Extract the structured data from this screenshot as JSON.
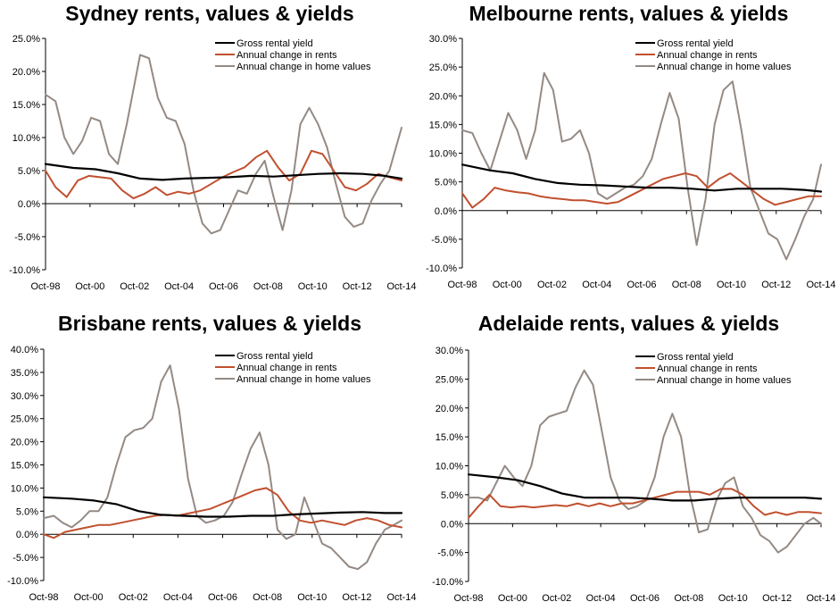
{
  "colors": {
    "yield": "#000000",
    "rents": "#c0502f",
    "values": "#948a84",
    "axis": "#000000"
  },
  "chart_data": [
    {
      "type": "line",
      "title": "Sydney rents, values & yields",
      "ylim": [
        -10,
        25
      ],
      "yticks": [
        "25.0%",
        "20.0%",
        "15.0%",
        "10.0%",
        "5.0%",
        "0.0%",
        "-5.0%",
        "-10.0%"
      ],
      "xticks": [
        "Oct-98",
        "Oct-00",
        "Oct-02",
        "Oct-04",
        "Oct-06",
        "Oct-08",
        "Oct-10",
        "Oct-12",
        "Oct-14"
      ],
      "xrange": [
        1998.75,
        2014.75
      ],
      "legend_position": "top-right",
      "series": [
        {
          "name": "Gross rental yield",
          "key": "yield",
          "x": [
            1998.75,
            2000,
            2001,
            2002,
            2003,
            2004,
            2005,
            2006,
            2007,
            2008,
            2009,
            2010,
            2011,
            2012,
            2013,
            2014,
            2014.75
          ],
          "y": [
            6.0,
            5.4,
            5.2,
            4.6,
            3.8,
            3.6,
            3.8,
            3.9,
            4.0,
            4.2,
            4.1,
            4.3,
            4.5,
            4.6,
            4.5,
            4.2,
            3.8
          ]
        },
        {
          "name": "Annual change in rents",
          "key": "rents",
          "x": [
            1998.75,
            1999.2,
            1999.7,
            2000.2,
            2000.7,
            2001.2,
            2001.7,
            2002.2,
            2002.7,
            2003.2,
            2003.7,
            2004.2,
            2004.7,
            2005.2,
            2005.7,
            2006.2,
            2006.7,
            2007.2,
            2007.7,
            2008.2,
            2008.7,
            2009.2,
            2009.7,
            2010.2,
            2010.7,
            2011.2,
            2011.7,
            2012.2,
            2012.7,
            2013.2,
            2013.7,
            2014.2,
            2014.75
          ],
          "y": [
            5.0,
            2.5,
            1.0,
            3.5,
            4.2,
            4.0,
            3.8,
            2.0,
            0.8,
            1.5,
            2.5,
            1.3,
            1.8,
            1.5,
            2.0,
            3.0,
            4.0,
            4.8,
            5.5,
            7.0,
            8.0,
            5.5,
            3.5,
            4.5,
            8.0,
            7.5,
            5.0,
            2.5,
            2.0,
            3.0,
            4.5,
            4.0,
            3.5
          ]
        },
        {
          "name": "Annual change in home values",
          "key": "values",
          "x": [
            1998.75,
            1999.2,
            1999.6,
            2000.0,
            2000.4,
            2000.8,
            2001.2,
            2001.6,
            2002.0,
            2002.4,
            2002.8,
            2003.0,
            2003.4,
            2003.8,
            2004.2,
            2004.6,
            2005.0,
            2005.4,
            2005.8,
            2006.2,
            2006.6,
            2007.0,
            2007.4,
            2007.8,
            2008.2,
            2008.6,
            2009.0,
            2009.4,
            2009.8,
            2010.2,
            2010.6,
            2011.0,
            2011.4,
            2011.8,
            2012.2,
            2012.6,
            2013.0,
            2013.4,
            2013.8,
            2014.2,
            2014.75
          ],
          "y": [
            16.5,
            15.5,
            10.0,
            7.5,
            9.5,
            13.0,
            12.5,
            7.5,
            6.0,
            12.0,
            19.0,
            22.5,
            22.0,
            16.0,
            13.0,
            12.5,
            9.0,
            2.0,
            -3.0,
            -4.5,
            -4.0,
            -1.0,
            2.0,
            1.5,
            4.5,
            6.5,
            1.0,
            -4.0,
            2.0,
            12.0,
            14.5,
            12.0,
            8.5,
            3.0,
            -2.0,
            -3.5,
            -3.0,
            0.5,
            3.0,
            5.0,
            11.5
          ]
        }
      ]
    },
    {
      "type": "line",
      "title": "Melbourne rents, values & yields",
      "ylim": [
        -10,
        30
      ],
      "yticks": [
        "30.0%",
        "25.0%",
        "20.0%",
        "15.0%",
        "10.0%",
        "5.0%",
        "0.0%",
        "-5.0%",
        "-10.0%"
      ],
      "xticks": [
        "Oct-98",
        "Oct-00",
        "Oct-02",
        "Oct-04",
        "Oct-06",
        "Oct-08",
        "Oct-10",
        "Oct-12",
        "Oct-14"
      ],
      "xrange": [
        1998.75,
        2014.75
      ],
      "legend_position": "top-right",
      "series": [
        {
          "name": "Gross rental yield",
          "key": "yield",
          "x": [
            1998.75,
            2000,
            2001,
            2002,
            2003,
            2004,
            2005,
            2006,
            2007,
            2008,
            2009,
            2010,
            2011,
            2012,
            2013,
            2014,
            2014.75
          ],
          "y": [
            8.0,
            7.0,
            6.5,
            5.5,
            4.8,
            4.5,
            4.4,
            4.2,
            4.0,
            4.0,
            3.8,
            3.5,
            3.8,
            3.8,
            3.8,
            3.6,
            3.3
          ]
        },
        {
          "name": "Annual change in rents",
          "key": "rents",
          "x": [
            1998.75,
            1999.2,
            1999.7,
            2000.2,
            2000.7,
            2001.2,
            2001.7,
            2002.2,
            2002.7,
            2003.2,
            2003.7,
            2004.2,
            2004.7,
            2005.2,
            2005.7,
            2006.2,
            2006.7,
            2007.2,
            2007.7,
            2008.2,
            2008.7,
            2009.2,
            2009.7,
            2010.2,
            2010.7,
            2011.2,
            2011.7,
            2012.2,
            2012.7,
            2013.2,
            2013.7,
            2014.2,
            2014.75
          ],
          "y": [
            3.0,
            0.5,
            2.0,
            4.0,
            3.5,
            3.2,
            3.0,
            2.5,
            2.2,
            2.0,
            1.8,
            1.8,
            1.5,
            1.2,
            1.5,
            2.5,
            3.5,
            4.5,
            5.5,
            6.0,
            6.5,
            6.0,
            4.0,
            5.5,
            6.5,
            5.0,
            3.5,
            2.0,
            1.0,
            1.5,
            2.0,
            2.5,
            2.5
          ]
        },
        {
          "name": "Annual change in home values",
          "key": "values",
          "x": [
            1998.75,
            1999.2,
            1999.6,
            2000.0,
            2000.4,
            2000.8,
            2001.2,
            2001.6,
            2002.0,
            2002.4,
            2002.8,
            2003.2,
            2003.6,
            2004.0,
            2004.4,
            2004.8,
            2005.2,
            2005.6,
            2006.0,
            2006.4,
            2006.8,
            2007.2,
            2007.6,
            2008.0,
            2008.4,
            2008.8,
            2009.2,
            2009.6,
            2010.0,
            2010.4,
            2010.8,
            2011.2,
            2011.6,
            2012.0,
            2012.4,
            2012.8,
            2013.2,
            2013.6,
            2014.0,
            2014.4,
            2014.75
          ],
          "y": [
            14.0,
            13.5,
            10.0,
            7.0,
            12.0,
            17.0,
            14.0,
            9.0,
            14.0,
            24.0,
            21.0,
            12.0,
            12.5,
            14.0,
            10.0,
            3.0,
            2.0,
            3.0,
            4.0,
            4.5,
            6.0,
            9.0,
            15.0,
            20.5,
            16.0,
            4.0,
            -6.0,
            2.0,
            15.0,
            21.0,
            22.5,
            14.0,
            4.0,
            0.0,
            -4.0,
            -5.0,
            -8.5,
            -5.0,
            -1.0,
            2.0,
            8.0
          ]
        }
      ]
    },
    {
      "type": "line",
      "title": "Brisbane rents, values & yields",
      "ylim": [
        -10,
        40
      ],
      "yticks": [
        "40.0%",
        "35.0%",
        "30.0%",
        "25.0%",
        "20.0%",
        "15.0%",
        "10.0%",
        "5.0%",
        "0.0%",
        "-5.0%",
        "-10.0%"
      ],
      "xticks": [
        "Oct-98",
        "Oct-00",
        "Oct-02",
        "Oct-04",
        "Oct-06",
        "Oct-08",
        "Oct-10",
        "Oct-12",
        "Oct-14"
      ],
      "xrange": [
        1998.75,
        2014.75
      ],
      "legend_position": "top-right",
      "series": [
        {
          "name": "Gross rental yield",
          "key": "yield",
          "x": [
            1998.75,
            2000,
            2001,
            2002,
            2003,
            2004,
            2005,
            2006,
            2007,
            2008,
            2009,
            2010,
            2011,
            2012,
            2013,
            2014,
            2014.75
          ],
          "y": [
            8.0,
            7.7,
            7.3,
            6.5,
            5.0,
            4.2,
            4.0,
            3.8,
            3.8,
            4.0,
            4.0,
            4.3,
            4.5,
            4.7,
            4.8,
            4.6,
            4.6
          ]
        },
        {
          "name": "Annual change in rents",
          "key": "rents",
          "x": [
            1998.75,
            1999.2,
            1999.7,
            2000.2,
            2000.7,
            2001.2,
            2001.7,
            2002.2,
            2002.7,
            2003.2,
            2003.7,
            2004.2,
            2004.7,
            2005.2,
            2005.7,
            2006.2,
            2006.7,
            2007.2,
            2007.7,
            2008.2,
            2008.7,
            2009.2,
            2009.7,
            2010.2,
            2010.7,
            2011.2,
            2011.7,
            2012.2,
            2012.7,
            2013.2,
            2013.7,
            2014.2,
            2014.75
          ],
          "y": [
            0.0,
            -0.8,
            0.5,
            1.0,
            1.5,
            2.0,
            2.0,
            2.5,
            3.0,
            3.5,
            4.0,
            4.2,
            4.0,
            4.5,
            5.0,
            5.5,
            6.5,
            7.5,
            8.5,
            9.5,
            10.0,
            8.5,
            5.0,
            3.0,
            2.5,
            3.0,
            2.5,
            2.0,
            3.0,
            3.5,
            3.0,
            2.0,
            1.5
          ]
        },
        {
          "name": "Annual change in home values",
          "key": "values",
          "x": [
            1998.75,
            1999.2,
            1999.6,
            2000.0,
            2000.4,
            2000.8,
            2001.2,
            2001.6,
            2002.0,
            2002.4,
            2002.8,
            2003.2,
            2003.6,
            2004.0,
            2004.4,
            2004.8,
            2005.2,
            2005.6,
            2006.0,
            2006.4,
            2006.8,
            2007.2,
            2007.6,
            2008.0,
            2008.4,
            2008.8,
            2009.2,
            2009.6,
            2010.0,
            2010.4,
            2010.8,
            2011.2,
            2011.6,
            2012.0,
            2012.4,
            2012.8,
            2013.2,
            2013.6,
            2014.0,
            2014.4,
            2014.75
          ],
          "y": [
            3.5,
            4.0,
            2.5,
            1.5,
            3.0,
            5.0,
            5.0,
            8.0,
            15.0,
            21.0,
            22.5,
            23.0,
            25.0,
            33.0,
            36.5,
            27.0,
            12.0,
            4.0,
            2.5,
            3.0,
            4.0,
            7.0,
            13.0,
            18.5,
            22.0,
            15.0,
            1.0,
            -1.0,
            0.0,
            8.0,
            3.0,
            -2.0,
            -3.0,
            -5.0,
            -7.0,
            -7.5,
            -6.0,
            -2.0,
            1.0,
            2.0,
            3.0
          ]
        }
      ]
    },
    {
      "type": "line",
      "title": "Adelaide rents, values & yields",
      "ylim": [
        -10,
        30
      ],
      "yticks": [
        "30.0%",
        "25.0%",
        "20.0%",
        "15.0%",
        "10.0%",
        "5.0%",
        "0.0%",
        "-5.0%",
        "-10.0%"
      ],
      "xticks": [
        "Oct-98",
        "Oct-00",
        "Oct-02",
        "Oct-04",
        "Oct-06",
        "Oct-08",
        "Oct-10",
        "Oct-12",
        "Oct-14"
      ],
      "xrange": [
        1998.75,
        2014.75
      ],
      "legend_position": "top-right",
      "series": [
        {
          "name": "Gross rental yield",
          "key": "yield",
          "x": [
            1998.75,
            2000,
            2001,
            2002,
            2003,
            2004,
            2005,
            2006,
            2007,
            2008,
            2009,
            2010,
            2011,
            2012,
            2013,
            2014,
            2014.75
          ],
          "y": [
            8.5,
            8.0,
            7.5,
            6.5,
            5.2,
            4.5,
            4.5,
            4.5,
            4.3,
            4.0,
            4.0,
            4.3,
            4.5,
            4.5,
            4.5,
            4.5,
            4.3
          ]
        },
        {
          "name": "Annual change in rents",
          "key": "rents",
          "x": [
            1998.75,
            1999.2,
            1999.7,
            2000.2,
            2000.7,
            2001.2,
            2001.7,
            2002.2,
            2002.7,
            2003.2,
            2003.7,
            2004.2,
            2004.7,
            2005.2,
            2005.7,
            2006.2,
            2006.7,
            2007.2,
            2007.7,
            2008.2,
            2008.7,
            2009.2,
            2009.7,
            2010.2,
            2010.7,
            2011.2,
            2011.7,
            2012.2,
            2012.7,
            2013.2,
            2013.7,
            2014.2,
            2014.75
          ],
          "y": [
            1.0,
            3.0,
            5.0,
            3.0,
            2.8,
            3.0,
            2.8,
            3.0,
            3.2,
            3.0,
            3.5,
            3.0,
            3.5,
            3.0,
            3.5,
            3.5,
            4.0,
            4.5,
            5.0,
            5.5,
            5.5,
            5.5,
            5.0,
            6.0,
            6.0,
            5.0,
            3.0,
            1.5,
            2.0,
            1.5,
            2.0,
            2.0,
            1.8
          ]
        },
        {
          "name": "Annual change in home values",
          "key": "values",
          "x": [
            1998.75,
            1999.2,
            1999.6,
            2000.0,
            2000.4,
            2000.8,
            2001.2,
            2001.6,
            2002.0,
            2002.4,
            2002.8,
            2003.2,
            2003.6,
            2004.0,
            2004.4,
            2004.8,
            2005.2,
            2005.6,
            2006.0,
            2006.4,
            2006.8,
            2007.2,
            2007.6,
            2008.0,
            2008.4,
            2008.8,
            2009.2,
            2009.6,
            2010.0,
            2010.4,
            2010.8,
            2011.2,
            2011.6,
            2012.0,
            2012.4,
            2012.8,
            2013.2,
            2013.6,
            2014.0,
            2014.4,
            2014.75
          ],
          "y": [
            4.5,
            4.5,
            4.0,
            7.0,
            10.0,
            8.0,
            6.5,
            10.0,
            17.0,
            18.5,
            19.0,
            19.5,
            23.5,
            26.5,
            24.0,
            16.0,
            8.0,
            4.0,
            2.5,
            3.0,
            4.0,
            8.0,
            15.0,
            19.0,
            15.0,
            5.0,
            -1.5,
            -1.0,
            4.0,
            7.0,
            8.0,
            3.0,
            1.0,
            -2.0,
            -3.0,
            -5.0,
            -4.0,
            -2.0,
            0.0,
            1.0,
            0.0
          ]
        }
      ]
    }
  ]
}
